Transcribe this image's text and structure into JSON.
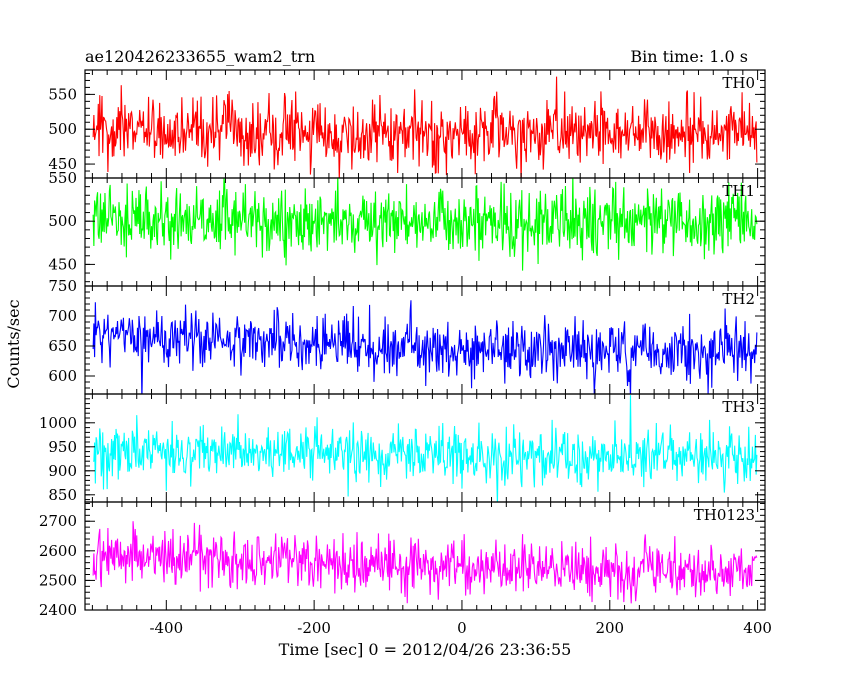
{
  "chart_data": {
    "type": "line",
    "title": "ae120426233655_wam2_trn",
    "subtitle": "Bin time: 1.0 s",
    "xlabel": "Time [sec] 0 = 2012/04/26 23:36:55",
    "ylabel": "Counts/sec",
    "xlim": [
      -510,
      410
    ],
    "xticks": [
      -400,
      -200,
      0,
      200,
      400
    ],
    "x_start": -499,
    "x_end": 399,
    "grid": false,
    "panels": [
      {
        "name": "TH0",
        "color": "#ff0000",
        "ylim": [
          430,
          585
        ],
        "yticks": [
          450,
          500,
          550
        ],
        "mean": 497,
        "spread": 24,
        "trend": [
          [
            -500,
            500
          ],
          [
            -200,
            495
          ],
          [
            0,
            490
          ],
          [
            200,
            497
          ],
          [
            400,
            500
          ]
        ]
      },
      {
        "name": "TH1",
        "color": "#00ff00",
        "ylim": [
          425,
          550
        ],
        "yticks": [
          450,
          500,
          550
        ],
        "mean": 500,
        "spread": 20,
        "trend": [
          [
            -500,
            505
          ],
          [
            -200,
            500
          ],
          [
            0,
            498
          ],
          [
            200,
            500
          ],
          [
            400,
            500
          ]
        ]
      },
      {
        "name": "TH2",
        "color": "#0000ff",
        "ylim": [
          570,
          750
        ],
        "yticks": [
          600,
          650,
          700,
          750
        ],
        "mean": 652,
        "spread": 25,
        "trend": [
          [
            -500,
            668
          ],
          [
            -300,
            658
          ],
          [
            0,
            648
          ],
          [
            200,
            642
          ],
          [
            400,
            642
          ]
        ]
      },
      {
        "name": "TH3",
        "color": "#00ffff",
        "ylim": [
          835,
          1060
        ],
        "yticks": [
          850,
          900,
          950,
          1000
        ],
        "mean": 935,
        "spread": 30,
        "trend": [
          [
            -500,
            945
          ],
          [
            -200,
            935
          ],
          [
            0,
            932
          ],
          [
            200,
            930
          ],
          [
            400,
            930
          ]
        ]
      },
      {
        "name": "TH0123",
        "color": "#ff00ff",
        "ylim": [
          2400,
          2765
        ],
        "yticks": [
          2400,
          2500,
          2600,
          2700
        ],
        "mean": 2550,
        "spread": 45,
        "trend": [
          [
            -500,
            2585
          ],
          [
            -200,
            2560
          ],
          [
            0,
            2550
          ],
          [
            200,
            2535
          ],
          [
            400,
            2545
          ]
        ]
      }
    ]
  }
}
